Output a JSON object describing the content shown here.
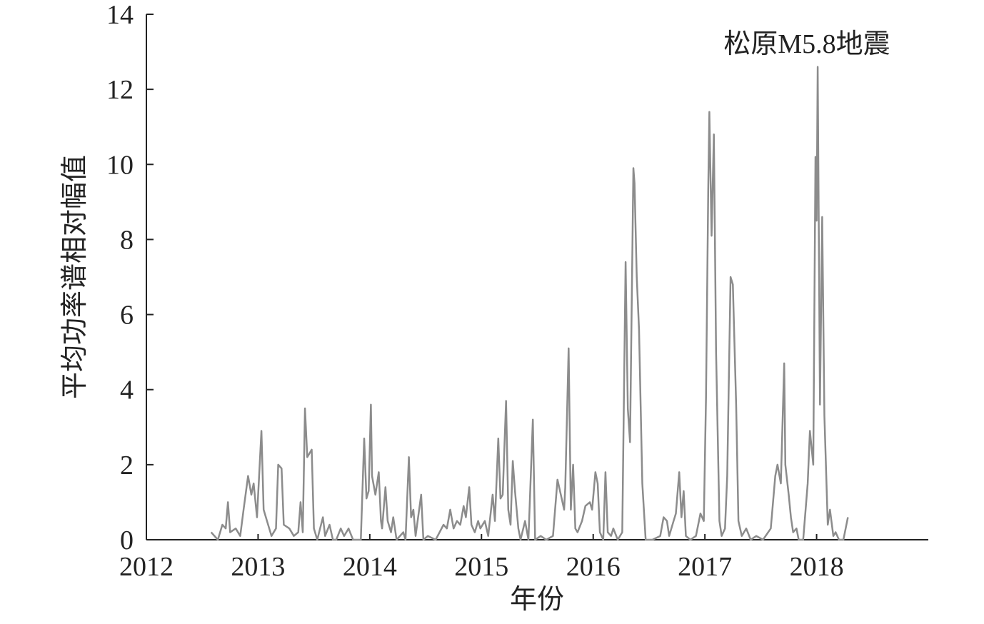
{
  "chart_data": {
    "type": "line",
    "annotation": "松原M5.8地震",
    "xlabel": "年份",
    "ylabel": "平均功率谱相对幅值",
    "color": "#8c8c8c",
    "xlim": [
      2012,
      2019
    ],
    "xticks": [
      2012,
      2013,
      2014,
      2015,
      2016,
      2017,
      2018
    ],
    "ylim": [
      0,
      14
    ],
    "yticks": [
      0,
      2,
      4,
      6,
      8,
      10,
      12,
      14
    ],
    "x": [
      2012.58,
      2012.64,
      2012.68,
      2012.71,
      2012.73,
      2012.75,
      2012.8,
      2012.84,
      2012.87,
      2012.91,
      2012.94,
      2012.96,
      2012.99,
      2013.03,
      2013.05,
      2013.08,
      2013.12,
      2013.16,
      2013.18,
      2013.21,
      2013.23,
      2013.28,
      2013.32,
      2013.36,
      2013.38,
      2013.4,
      2013.42,
      2013.44,
      2013.48,
      2013.5,
      2013.53,
      2013.58,
      2013.6,
      2013.64,
      2013.67,
      2013.7,
      2013.74,
      2013.77,
      2013.81,
      2013.85,
      2013.92,
      2013.95,
      2013.97,
      2013.99,
      2014.01,
      2014.02,
      2014.05,
      2014.08,
      2014.1,
      2014.11,
      2014.14,
      2014.16,
      2014.19,
      2014.21,
      2014.24,
      2014.3,
      2014.32,
      2014.35,
      2014.37,
      2014.39,
      2014.41,
      2014.46,
      2014.48,
      2014.52,
      2014.59,
      2014.66,
      2014.69,
      2014.72,
      2014.75,
      2014.78,
      2014.81,
      2014.84,
      2014.86,
      2014.89,
      2014.91,
      2014.94,
      2014.97,
      2014.99,
      2015.03,
      2015.06,
      2015.1,
      2015.12,
      2015.15,
      2015.17,
      2015.19,
      2015.22,
      2015.24,
      2015.26,
      2015.28,
      2015.3,
      2015.33,
      2015.35,
      2015.39,
      2015.42,
      2015.46,
      2015.48,
      2015.53,
      2015.58,
      2015.64,
      2015.68,
      2015.71,
      2015.74,
      2015.75,
      2015.78,
      2015.8,
      2015.82,
      2015.84,
      2015.86,
      2015.9,
      2015.93,
      2015.97,
      2015.99,
      2016.02,
      2016.04,
      2016.06,
      2016.09,
      2016.11,
      2016.13,
      2016.16,
      2016.18,
      2016.22,
      2016.26,
      2016.29,
      2016.31,
      2016.33,
      2016.36,
      2016.37,
      2016.39,
      2016.41,
      2016.44,
      2016.47,
      2016.53,
      2016.6,
      2016.63,
      2016.66,
      2016.68,
      2016.72,
      2016.74,
      2016.77,
      2016.79,
      2016.81,
      2016.83,
      2016.87,
      2016.92,
      2016.96,
      2016.99,
      2017.01,
      2017.03,
      2017.04,
      2017.06,
      2017.08,
      2017.1,
      2017.13,
      2017.15,
      2017.18,
      2017.2,
      2017.23,
      2017.25,
      2017.28,
      2017.3,
      2017.33,
      2017.37,
      2017.41,
      2017.46,
      2017.52,
      2017.59,
      2017.63,
      2017.65,
      2017.68,
      2017.71,
      2017.72,
      2017.75,
      2017.77,
      2017.79,
      2017.82,
      2017.84,
      2017.88,
      2017.92,
      2017.94,
      2017.97,
      2017.99,
      2018.0,
      2018.01,
      2018.03,
      2018.05,
      2018.07,
      2018.1,
      2018.12,
      2018.15,
      2018.17,
      2018.2,
      2018.24,
      2018.28
    ],
    "values": [
      0.2,
      0,
      0.4,
      0.3,
      1.0,
      0.2,
      0.3,
      0.1,
      0.8,
      1.7,
      1.2,
      1.5,
      0.6,
      2.9,
      0.8,
      0.5,
      0.1,
      0.3,
      2.0,
      1.9,
      0.4,
      0.3,
      0.1,
      0.2,
      1.0,
      0.2,
      3.5,
      2.2,
      2.4,
      0.3,
      0,
      0.6,
      0.1,
      0.4,
      0,
      0,
      0.3,
      0.1,
      0.3,
      0,
      0,
      2.7,
      1.1,
      1.3,
      3.6,
      1.7,
      1.2,
      1.8,
      0.5,
      0.3,
      1.4,
      0.5,
      0.2,
      0.6,
      0,
      0.2,
      0,
      2.2,
      0.6,
      0.8,
      0.1,
      1.2,
      0,
      0.1,
      0,
      0.4,
      0.3,
      0.8,
      0.3,
      0.5,
      0.4,
      0.9,
      0.6,
      1.4,
      0.4,
      0.2,
      0.5,
      0.3,
      0.5,
      0.1,
      1.2,
      0.5,
      2.7,
      1.1,
      1.2,
      3.7,
      0.8,
      0.4,
      2.1,
      1.3,
      0.3,
      0,
      0.5,
      0,
      3.2,
      0,
      0.1,
      0,
      0.1,
      1.6,
      1.2,
      0.8,
      1.4,
      5.1,
      0.8,
      2.0,
      0.3,
      0.2,
      0.5,
      0.9,
      1.0,
      0.8,
      1.8,
      1.5,
      0.2,
      0,
      1.8,
      0.2,
      0.1,
      0.3,
      0,
      0.2,
      7.4,
      3.5,
      2.6,
      9.9,
      9.5,
      7.0,
      5.6,
      1.5,
      0,
      0,
      0.1,
      0.6,
      0.5,
      0.1,
      0.5,
      0.7,
      1.8,
      0.6,
      1.3,
      0.1,
      0,
      0.1,
      0.7,
      0.5,
      3.8,
      9.3,
      11.4,
      8.1,
      10.8,
      5.0,
      0.5,
      0.1,
      0.3,
      1.7,
      7.0,
      6.8,
      3.6,
      0.5,
      0.1,
      0.3,
      0,
      0.1,
      0,
      0.3,
      1.7,
      2.0,
      1.5,
      4.7,
      2.0,
      1.2,
      0.6,
      0.2,
      0.3,
      0,
      0,
      1.5,
      2.9,
      2.0,
      10.2,
      8.5,
      12.6,
      3.6,
      8.6,
      3.3,
      0.4,
      0.8,
      0.1,
      0.2,
      0,
      0,
      0.6
    ]
  }
}
